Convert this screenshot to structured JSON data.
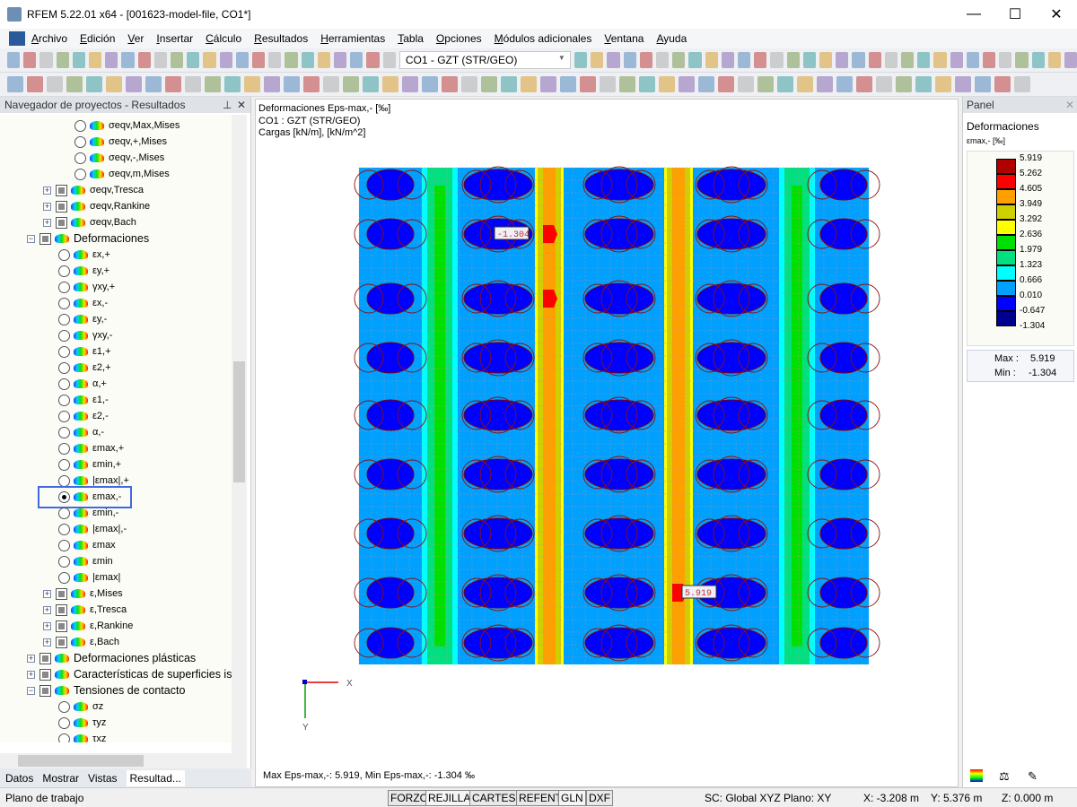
{
  "window": {
    "title": "RFEM 5.22.01 x64 - [001623-model-file, CO1*]",
    "minimize": "—",
    "maximize": "☐",
    "close": "✕"
  },
  "menu": [
    "Archivo",
    "Edición",
    "Ver",
    "Insertar",
    "Cálculo",
    "Resultados",
    "Herramientas",
    "Tabla",
    "Opciones",
    "Módulos adicionales",
    "Ventana",
    "Ayuda"
  ],
  "toolbar": {
    "load_case": "CO1 - GZT (STR/GEO)"
  },
  "navigator": {
    "title": "Navegador de proyectos - Resultados",
    "items": [
      {
        "label": "σeqv,Max,Mises",
        "type": "radio",
        "level": 4
      },
      {
        "label": "σeqv,+,Mises",
        "type": "radio",
        "level": 4
      },
      {
        "label": "σeqv,-,Mises",
        "type": "radio",
        "level": 4
      },
      {
        "label": "σeqv,m,Mises",
        "type": "radio",
        "level": 4
      },
      {
        "label": "σeqv,Tresca",
        "type": "check",
        "level": 3,
        "expand": "+"
      },
      {
        "label": "σeqv,Rankine",
        "type": "check",
        "level": 3,
        "expand": "+"
      },
      {
        "label": "σeqv,Bach",
        "type": "check",
        "level": 3,
        "expand": "+"
      },
      {
        "label": "Deformaciones",
        "type": "check",
        "level": 2,
        "expand": "−",
        "big": true
      },
      {
        "label": "εx,+",
        "type": "radio",
        "level": 3
      },
      {
        "label": "εy,+",
        "type": "radio",
        "level": 3
      },
      {
        "label": "γxy,+",
        "type": "radio",
        "level": 3
      },
      {
        "label": "εx,-",
        "type": "radio",
        "level": 3
      },
      {
        "label": "εy,-",
        "type": "radio",
        "level": 3
      },
      {
        "label": "γxy,-",
        "type": "radio",
        "level": 3
      },
      {
        "label": "ε1,+",
        "type": "radio",
        "level": 3
      },
      {
        "label": "ε2,+",
        "type": "radio",
        "level": 3
      },
      {
        "label": "α,+",
        "type": "radio",
        "level": 3
      },
      {
        "label": "ε1,-",
        "type": "radio",
        "level": 3
      },
      {
        "label": "ε2,-",
        "type": "radio",
        "level": 3
      },
      {
        "label": "α,-",
        "type": "radio",
        "level": 3
      },
      {
        "label": "εmax,+",
        "type": "radio",
        "level": 3
      },
      {
        "label": "εmin,+",
        "type": "radio",
        "level": 3
      },
      {
        "label": "|εmax|,+",
        "type": "radio",
        "level": 3
      },
      {
        "label": "εmax,-",
        "type": "radio",
        "level": 3,
        "selected": true
      },
      {
        "label": "εmin,-",
        "type": "radio",
        "level": 3
      },
      {
        "label": "|εmax|,-",
        "type": "radio",
        "level": 3
      },
      {
        "label": "εmax",
        "type": "radio",
        "level": 3
      },
      {
        "label": "εmin",
        "type": "radio",
        "level": 3
      },
      {
        "label": "|εmax|",
        "type": "radio",
        "level": 3
      },
      {
        "label": "ε,Mises",
        "type": "check",
        "level": 3,
        "expand": "+"
      },
      {
        "label": "ε,Tresca",
        "type": "check",
        "level": 3,
        "expand": "+"
      },
      {
        "label": "ε,Rankine",
        "type": "check",
        "level": 3,
        "expand": "+"
      },
      {
        "label": "ε,Bach",
        "type": "check",
        "level": 3,
        "expand": "+"
      },
      {
        "label": "Deformaciones plásticas",
        "type": "check",
        "level": 2,
        "expand": "+",
        "big": true
      },
      {
        "label": "Características de superficies isótr",
        "type": "check",
        "level": 2,
        "expand": "+",
        "big": true
      },
      {
        "label": "Tensiones de contacto",
        "type": "check",
        "level": 2,
        "expand": "−",
        "big": true
      },
      {
        "label": "σz",
        "type": "radio",
        "level": 3
      },
      {
        "label": "τyz",
        "type": "radio",
        "level": 3
      },
      {
        "label": "τxz",
        "type": "radio",
        "level": 3
      }
    ],
    "tabs": [
      "Datos",
      "Mostrar",
      "Vistas",
      "Resultad..."
    ],
    "highlight_color": "#4169e1"
  },
  "view": {
    "info": [
      "Deformaciones Eps-max,- [‰]",
      "CO1 : GZT (STR/GEO)",
      "Cargas [kN/m], [kN/m^2]"
    ],
    "footer": "Max Eps-max,-: 5.919, Min Eps-max,-: -1.304 ‰",
    "label_min": "-1.304",
    "label_max": "5.919",
    "axis_x": "X",
    "axis_y": "Y"
  },
  "panel": {
    "title": "Panel",
    "heading": "Deformaciones",
    "unit": "εmax,- [‰]",
    "legend_values": [
      "5.919",
      "5.262",
      "4.605",
      "3.949",
      "3.292",
      "2.636",
      "1.979",
      "1.323",
      "0.666",
      "0.010",
      "-0.647",
      "-1.304"
    ],
    "legend_colors": [
      "#b00000",
      "#ff0000",
      "#ffa000",
      "#d0d000",
      "#ffff00",
      "#00e000",
      "#00e080",
      "#00ffff",
      "#00a0ff",
      "#0000ff",
      "#000090"
    ],
    "max_label": "Max :",
    "max_value": "5.919",
    "min_label": "Min :",
    "min_value": "-1.304"
  },
  "status": {
    "left": "Plano de trabajo",
    "buttons": [
      "FORZC",
      "REJILLA",
      "CARTES",
      "REFENT",
      "GLN",
      "DXF"
    ],
    "sc": "SC: Global XYZ",
    "plane": "Plano: XY",
    "x": "X:  -3.208 m",
    "y": "Y:  5.376 m",
    "z": "Z:  0.000 m"
  }
}
